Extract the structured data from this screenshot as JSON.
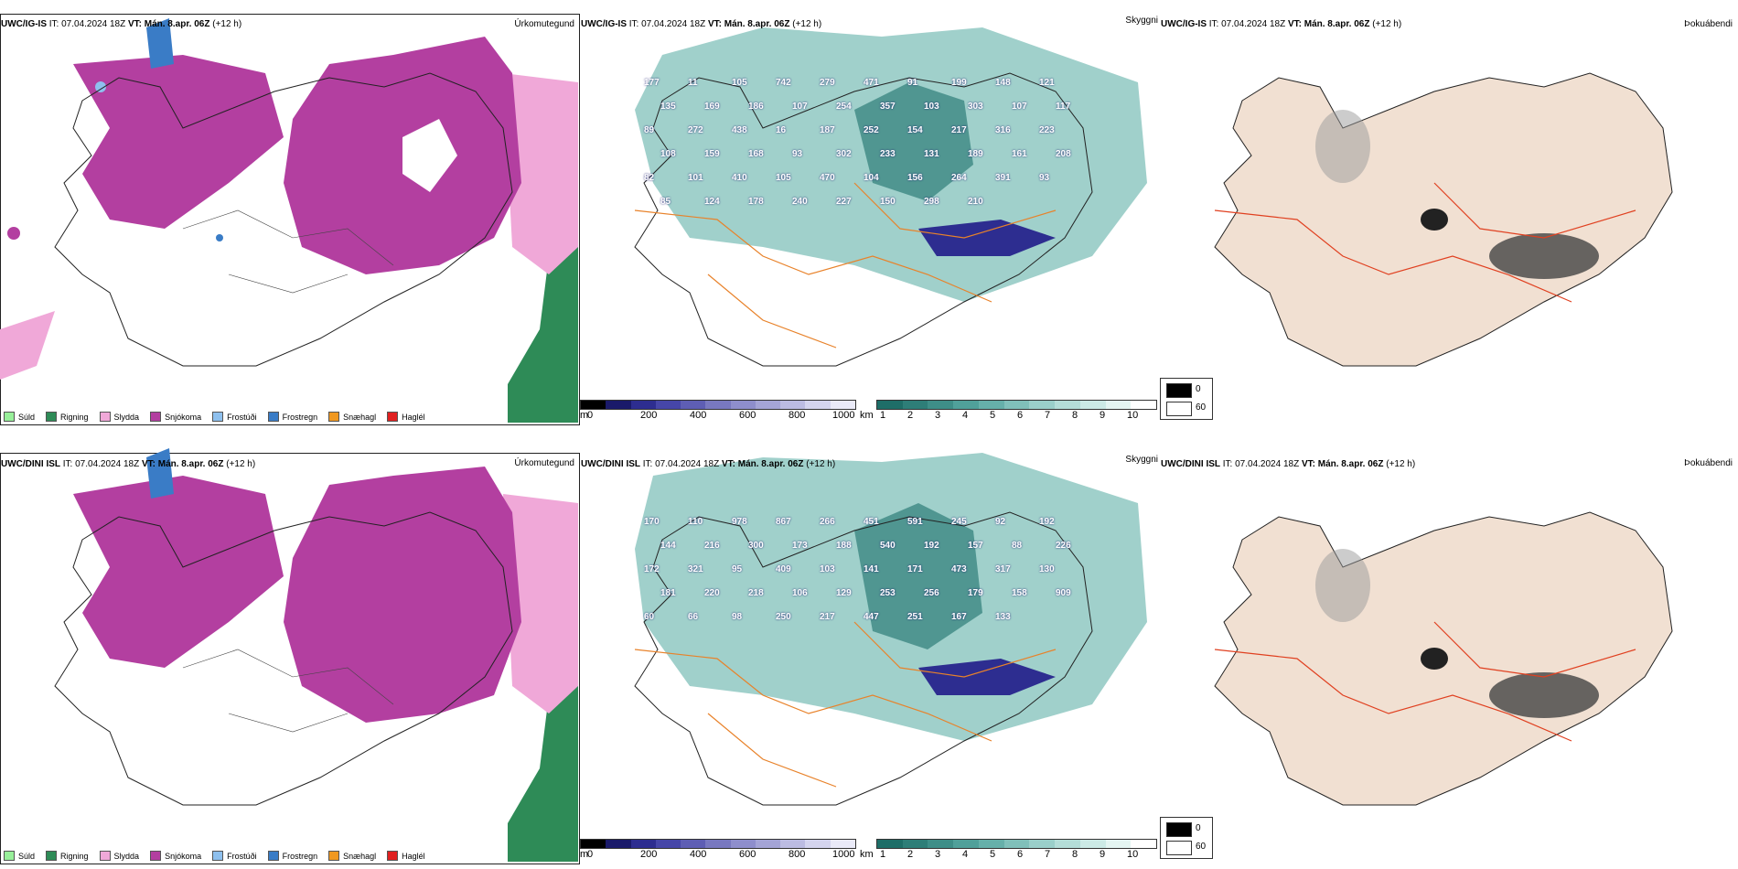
{
  "panels": [
    {
      "model": "UWC/IG-IS",
      "it": "IT: 07.04.2024 18Z",
      "vt_label": "VT:",
      "vt": "Mán. 8.apr. 06Z",
      "lead": "(+12 h)"
    },
    {
      "model": "UWC/DINI ISL",
      "it": "IT: 07.04.2024 18Z",
      "vt_label": "VT:",
      "vt": "Mán. 8.apr. 06Z",
      "lead": "(+12 h)"
    }
  ],
  "variables": {
    "precip_type": "Úrkomutegund",
    "visibility": "Skyggni",
    "fog": "Þokuábendi"
  },
  "precip_legend": [
    {
      "label": "Súld",
      "color": "#98f09a"
    },
    {
      "label": "Rigning",
      "color": "#2e8b57"
    },
    {
      "label": "Slydda",
      "color": "#f0a8d8"
    },
    {
      "label": "Snjókoma",
      "color": "#b33fa0"
    },
    {
      "label": "Frostúði",
      "color": "#8ec0ee"
    },
    {
      "label": "Frostregn",
      "color": "#3a7cc6"
    },
    {
      "label": "Snæhagl",
      "color": "#f09820"
    },
    {
      "label": "Haglél",
      "color": "#e02020"
    }
  ],
  "elev_scale": {
    "unit": "m",
    "ticks": [
      "0",
      "200",
      "400",
      "600",
      "800",
      "1000"
    ],
    "colors": [
      "#000000",
      "#1a1a6a",
      "#2d2d90",
      "#4646a8",
      "#5e5eb4",
      "#7878c0",
      "#8e8ecc",
      "#a4a4d6",
      "#bcbce2",
      "#d4d4ee",
      "#eaeaf8"
    ]
  },
  "vis_scale": {
    "unit": "km",
    "ticks": [
      "1",
      "2",
      "3",
      "4",
      "5",
      "6",
      "7",
      "8",
      "9",
      "10"
    ],
    "colors": [
      "#1e6e68",
      "#2e7e78",
      "#3e8e88",
      "#50a09a",
      "#66b0aa",
      "#80c0ba",
      "#9acfca",
      "#b4ddd8",
      "#cceae6",
      "#e4f5f2",
      "#ffffff"
    ]
  },
  "fog_legend": [
    {
      "value": "0",
      "color": "#000000"
    },
    {
      "value": "60",
      "color": "#ffffff"
    }
  ],
  "vis_labels_top": [
    "177",
    "11",
    "105",
    "742",
    "279",
    "471",
    "91",
    "199",
    "148",
    "121",
    "135",
    "169",
    "186",
    "107",
    "254",
    "357",
    "103",
    "303",
    "107",
    "117",
    "89",
    "272",
    "438",
    "16",
    "187",
    "252",
    "154",
    "217",
    "316",
    "223",
    "108",
    "159",
    "168",
    "93",
    "302",
    "233",
    "131",
    "189",
    "161",
    "208",
    "82",
    "101",
    "410",
    "105",
    "470",
    "104",
    "156",
    "264",
    "391",
    "93",
    "85",
    "124",
    "178",
    "240",
    "227",
    "150",
    "298",
    "210"
  ],
  "vis_labels_bottom": [
    "170",
    "110",
    "978",
    "867",
    "266",
    "451",
    "591",
    "245",
    "92",
    "192",
    "144",
    "216",
    "300",
    "173",
    "188",
    "540",
    "192",
    "157",
    "88",
    "226",
    "172",
    "321",
    "95",
    "409",
    "103",
    "141",
    "171",
    "473",
    "317",
    "130",
    "181",
    "220",
    "218",
    "106",
    "129",
    "253",
    "256",
    "179",
    "158",
    "909",
    "60",
    "66",
    "98",
    "250",
    "217",
    "447",
    "251",
    "167",
    "133"
  ]
}
